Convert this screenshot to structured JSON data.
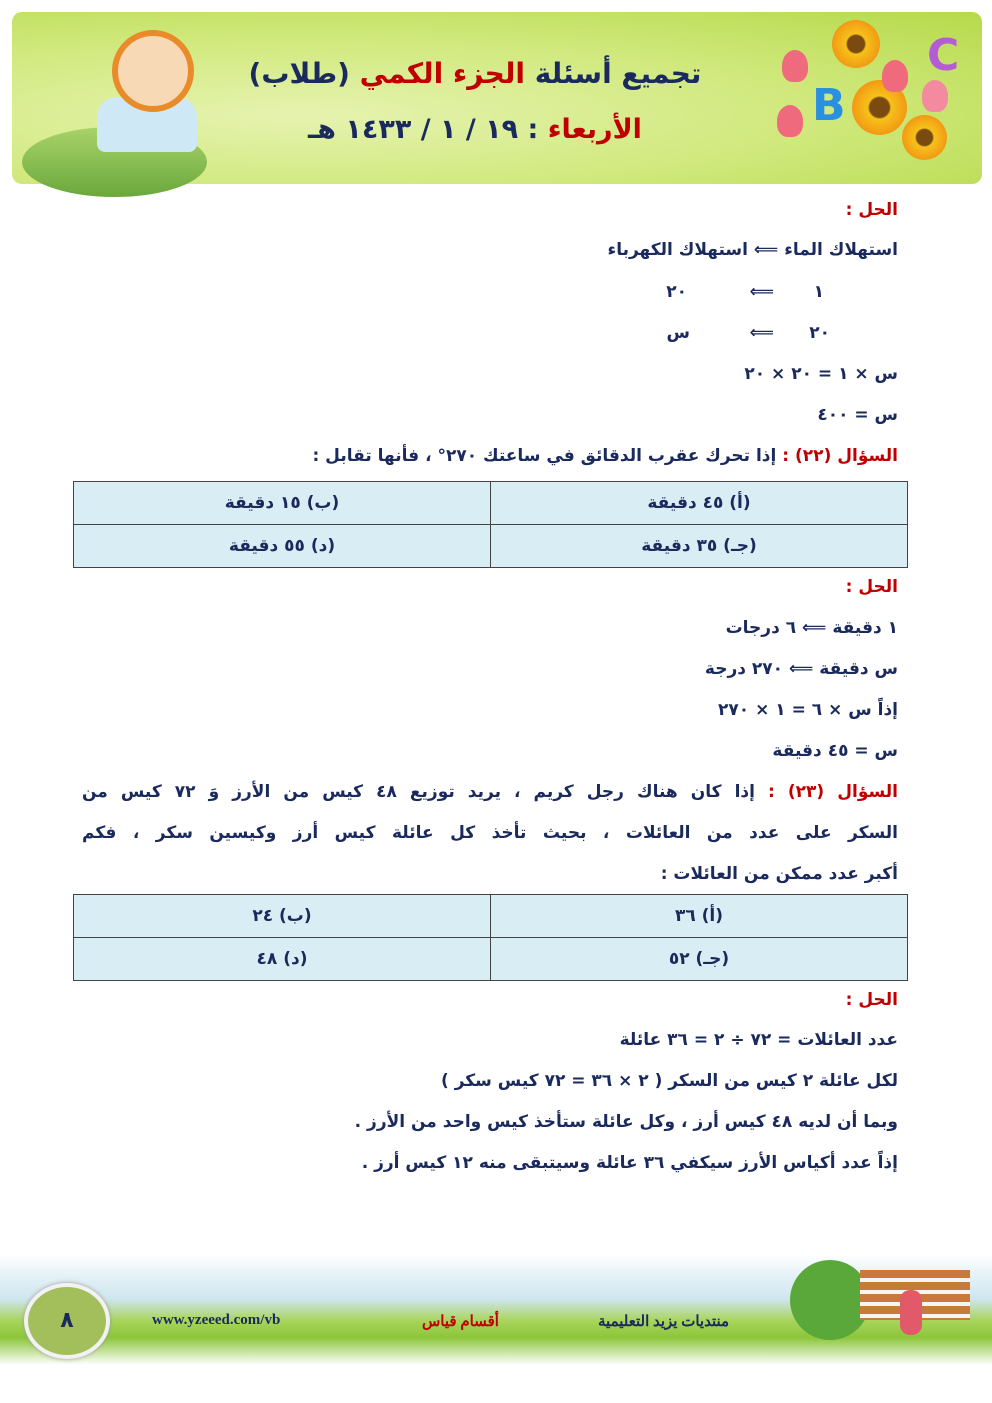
{
  "header": {
    "title_part1": "تجميع أسئلة",
    "title_part2": "الجزء الكمي",
    "title_part3": "(طلاب)",
    "day": "الأربعاء",
    "date": ": ١٩ / ١ / ١٤٣٣ هـ"
  },
  "solution_21": {
    "label": "الحل :",
    "lines": [
      "استهلاك الماء ⟸ استهلاك الكهرباء",
      "س × ١ = ٢٠ × ٢٠",
      "س = ٤٠٠"
    ],
    "rows": [
      {
        "left": "١",
        "arrow": "⟸",
        "right": "٢٠"
      },
      {
        "left": "٢٠",
        "arrow": "⟸",
        "right": "س"
      }
    ]
  },
  "question_22": {
    "label": "السؤال (٢٢) :",
    "text": "إذا تحرك عقرب الدقائق في ساعتك ٢٧٠° ، فأنها تقابل :",
    "options": [
      "(أ) ٤٥ دقيقة",
      "(ب) ١٥ دقيقة",
      "(جـ) ٣٥ دقيقة",
      "(د) ٥٥ دقيقة"
    ]
  },
  "solution_22": {
    "label": "الحل :",
    "lines": [
      "١ دقيقة ⟸ ٦ درجات",
      "س دقيقة ⟸ ٢٧٠ درجة",
      "إذاً س × ٦ = ١ × ٢٧٠",
      "س = ٤٥ دقيقة"
    ]
  },
  "question_23": {
    "label": "السؤال (٢٣) :",
    "text_line1": "إذا كان هناك رجل كريم ، يريد توزيع ٤٨ كيس من الأرز وَ ٧٢ كيس من",
    "text_line2": "السكر على عدد من العائلات ، بحيث تأخذ كل عائلة كيس أرز وكيسين سكر ، فكم",
    "text_line3": "أكبر عدد ممكن من العائلات :",
    "options": [
      "(أ) ٣٦",
      "(ب) ٢٤",
      "(جـ) ٥٢",
      "(د) ٤٨"
    ]
  },
  "solution_23": {
    "label": "الحل :",
    "lines": [
      "عدد العائلات = ٧٢ ÷ ٢ = ٣٦ عائلة",
      "لكل عائلة ٢ كيس من السكر ( ٢ × ٣٦ = ٧٢ كيس سكر )",
      "وبما أن لديه ٤٨ كيس أرز ، وكل عائلة ستأخذ كيس واحد من الأرز .",
      "إذاً عدد أكياس الأرز سيكفي ٣٦ عائلة وسيتبقى منه ١٢ كيس أرز ."
    ]
  },
  "footer": {
    "page_number": "٨",
    "url": "www.yzeeed.com/vb",
    "section": "أقسام قياس",
    "forum": "منتديات يزيد التعليمية"
  },
  "colors": {
    "text": "#1b2a5c",
    "accent": "#c00000",
    "table_bg": "#d9edf5"
  }
}
